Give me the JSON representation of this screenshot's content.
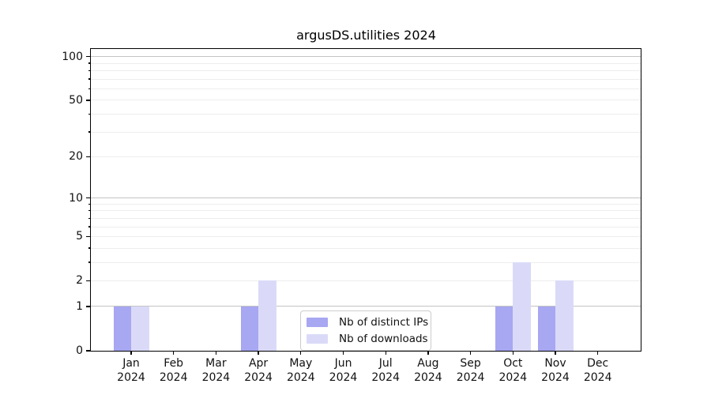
{
  "chart_data": {
    "type": "bar",
    "title": "argusDS.utilities 2024",
    "categories": [
      {
        "month": "Jan",
        "year": "2024"
      },
      {
        "month": "Feb",
        "year": "2024"
      },
      {
        "month": "Mar",
        "year": "2024"
      },
      {
        "month": "Apr",
        "year": "2024"
      },
      {
        "month": "May",
        "year": "2024"
      },
      {
        "month": "Jun",
        "year": "2024"
      },
      {
        "month": "Jul",
        "year": "2024"
      },
      {
        "month": "Aug",
        "year": "2024"
      },
      {
        "month": "Sep",
        "year": "2024"
      },
      {
        "month": "Oct",
        "year": "2024"
      },
      {
        "month": "Nov",
        "year": "2024"
      },
      {
        "month": "Dec",
        "year": "2024"
      }
    ],
    "series": [
      {
        "name": "Nb of distinct IPs",
        "color": "#a7a7f2",
        "values": [
          1,
          0,
          0,
          1,
          0,
          0,
          0,
          0,
          0,
          1,
          1,
          0
        ]
      },
      {
        "name": "Nb of downloads",
        "color": "#dadaf8",
        "values": [
          1,
          0,
          0,
          2,
          0,
          0,
          0,
          0,
          0,
          3,
          2,
          0
        ]
      }
    ],
    "y_axis": {
      "scale": "log1p",
      "ticks": [
        0,
        1,
        2,
        5,
        10,
        20,
        50,
        100
      ],
      "max": 113,
      "major_grid_values": [
        1,
        10,
        100
      ],
      "minor_grid_values": [
        2,
        3,
        4,
        5,
        6,
        7,
        8,
        9,
        20,
        30,
        40,
        50,
        60,
        70,
        80,
        90
      ]
    },
    "grid": true,
    "legend_position": "bottom-center",
    "colors": {
      "grid_major": "#c4c4c4",
      "grid_minor": "#ededed",
      "axis": "#000000",
      "text": "#111111"
    }
  }
}
